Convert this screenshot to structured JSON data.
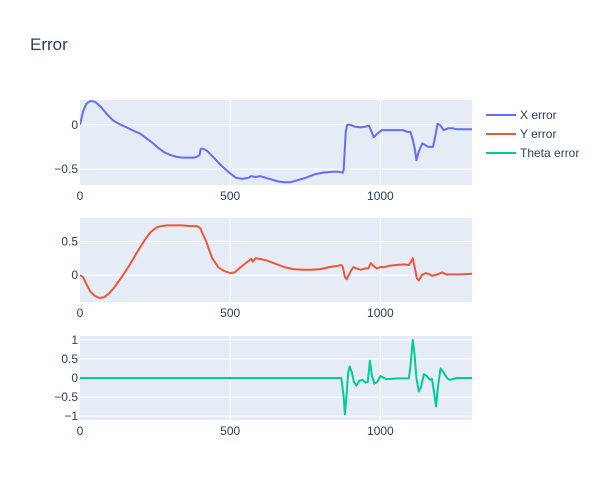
{
  "title": "Error",
  "legend_position": "top-right",
  "colors": {
    "plot_bg": "#e5ecf6",
    "grid": "#ffffff",
    "text": "#2a3f5f",
    "x_error": "#636efa",
    "y_error": "#ef553b",
    "theta_error": "#00cc96"
  },
  "chart_data": [
    {
      "type": "line",
      "title": "",
      "xlabel": "",
      "ylabel": "",
      "xlim": [
        0,
        1305
      ],
      "ylim": [
        -0.68,
        0.28
      ],
      "xticks": [
        0,
        500,
        1000
      ],
      "xtick_labels": [
        "0",
        "500",
        "1000"
      ],
      "yticks": [
        0,
        -0.5
      ],
      "ytick_labels": [
        "0",
        "−0.5"
      ],
      "grid": true,
      "series": [
        {
          "name": "X error",
          "color": "#636efa",
          "points": [
            [
              0,
              0
            ],
            [
              10,
              0.15
            ],
            [
              22,
              0.24
            ],
            [
              35,
              0.27
            ],
            [
              50,
              0.26
            ],
            [
              70,
              0.2
            ],
            [
              90,
              0.12
            ],
            [
              110,
              0.05
            ],
            [
              130,
              0.01
            ],
            [
              155,
              -0.03
            ],
            [
              180,
              -0.07
            ],
            [
              200,
              -0.1
            ],
            [
              220,
              -0.15
            ],
            [
              240,
              -0.2
            ],
            [
              260,
              -0.26
            ],
            [
              280,
              -0.31
            ],
            [
              300,
              -0.34
            ],
            [
              320,
              -0.36
            ],
            [
              340,
              -0.37
            ],
            [
              360,
              -0.37
            ],
            [
              380,
              -0.37
            ],
            [
              390,
              -0.36
            ],
            [
              398,
              -0.34
            ],
            [
              402,
              -0.27
            ],
            [
              410,
              -0.27
            ],
            [
              425,
              -0.3
            ],
            [
              445,
              -0.37
            ],
            [
              470,
              -0.46
            ],
            [
              500,
              -0.55
            ],
            [
              520,
              -0.6
            ],
            [
              540,
              -0.61
            ],
            [
              560,
              -0.6
            ],
            [
              570,
              -0.58
            ],
            [
              585,
              -0.59
            ],
            [
              600,
              -0.58
            ],
            [
              630,
              -0.61
            ],
            [
              660,
              -0.64
            ],
            [
              680,
              -0.65
            ],
            [
              700,
              -0.65
            ],
            [
              720,
              -0.63
            ],
            [
              750,
              -0.6
            ],
            [
              780,
              -0.56
            ],
            [
              810,
              -0.54
            ],
            [
              840,
              -0.53
            ],
            [
              860,
              -0.53
            ],
            [
              875,
              -0.54
            ],
            [
              878,
              -0.5
            ],
            [
              885,
              -0.07
            ],
            [
              890,
              0.0
            ],
            [
              900,
              0.0
            ],
            [
              915,
              -0.02
            ],
            [
              935,
              -0.03
            ],
            [
              950,
              -0.02
            ],
            [
              962,
              -0.01
            ],
            [
              968,
              -0.06
            ],
            [
              978,
              -0.14
            ],
            [
              990,
              -0.1
            ],
            [
              1005,
              -0.06
            ],
            [
              1025,
              -0.06
            ],
            [
              1050,
              -0.06
            ],
            [
              1075,
              -0.06
            ],
            [
              1090,
              -0.08
            ],
            [
              1100,
              -0.08
            ],
            [
              1108,
              -0.17
            ],
            [
              1115,
              -0.28
            ],
            [
              1120,
              -0.4
            ],
            [
              1128,
              -0.3
            ],
            [
              1140,
              -0.21
            ],
            [
              1150,
              -0.23
            ],
            [
              1160,
              -0.25
            ],
            [
              1175,
              -0.25
            ],
            [
              1183,
              -0.12
            ],
            [
              1190,
              0.01
            ],
            [
              1198,
              0.0
            ],
            [
              1210,
              -0.06
            ],
            [
              1225,
              -0.04
            ],
            [
              1240,
              -0.04
            ],
            [
              1255,
              -0.05
            ],
            [
              1270,
              -0.05
            ],
            [
              1305,
              -0.05
            ]
          ]
        }
      ]
    },
    {
      "type": "line",
      "title": "",
      "xlabel": "",
      "ylabel": "",
      "xlim": [
        0,
        1305
      ],
      "ylim": [
        -0.4,
        0.85
      ],
      "xticks": [
        0,
        500,
        1000
      ],
      "xtick_labels": [
        "0",
        "500",
        "1000"
      ],
      "yticks": [
        0.5,
        0
      ],
      "ytick_labels": [
        "0.5",
        "0"
      ],
      "grid": true,
      "series": [
        {
          "name": "Y error",
          "color": "#ef553b",
          "points": [
            [
              0,
              0
            ],
            [
              10,
              -0.03
            ],
            [
              20,
              -0.12
            ],
            [
              35,
              -0.25
            ],
            [
              50,
              -0.31
            ],
            [
              65,
              -0.34
            ],
            [
              80,
              -0.33
            ],
            [
              95,
              -0.28
            ],
            [
              115,
              -0.18
            ],
            [
              140,
              -0.02
            ],
            [
              165,
              0.15
            ],
            [
              190,
              0.34
            ],
            [
              215,
              0.52
            ],
            [
              235,
              0.64
            ],
            [
              255,
              0.71
            ],
            [
              270,
              0.73
            ],
            [
              290,
              0.74
            ],
            [
              310,
              0.74
            ],
            [
              340,
              0.74
            ],
            [
              370,
              0.73
            ],
            [
              390,
              0.73
            ],
            [
              400,
              0.7
            ],
            [
              420,
              0.5
            ],
            [
              440,
              0.25
            ],
            [
              460,
              0.12
            ],
            [
              480,
              0.06
            ],
            [
              500,
              0.03
            ],
            [
              515,
              0.04
            ],
            [
              535,
              0.12
            ],
            [
              555,
              0.19
            ],
            [
              570,
              0.24
            ],
            [
              575,
              0.2
            ],
            [
              585,
              0.25
            ],
            [
              600,
              0.24
            ],
            [
              620,
              0.22
            ],
            [
              650,
              0.17
            ],
            [
              680,
              0.12
            ],
            [
              710,
              0.09
            ],
            [
              740,
              0.08
            ],
            [
              770,
              0.08
            ],
            [
              800,
              0.09
            ],
            [
              830,
              0.12
            ],
            [
              860,
              0.14
            ],
            [
              870,
              0.15
            ],
            [
              875,
              0.12
            ],
            [
              882,
              -0.03
            ],
            [
              888,
              -0.06
            ],
            [
              895,
              0.0
            ],
            [
              903,
              0.07
            ],
            [
              910,
              0.12
            ],
            [
              920,
              0.1
            ],
            [
              935,
              0.08
            ],
            [
              950,
              0.1
            ],
            [
              960,
              0.1
            ],
            [
              968,
              0.18
            ],
            [
              976,
              0.14
            ],
            [
              988,
              0.1
            ],
            [
              1000,
              0.12
            ],
            [
              1015,
              0.12
            ],
            [
              1030,
              0.14
            ],
            [
              1055,
              0.15
            ],
            [
              1080,
              0.16
            ],
            [
              1095,
              0.15
            ],
            [
              1102,
              0.2
            ],
            [
              1108,
              0.25
            ],
            [
              1115,
              0.1
            ],
            [
              1122,
              -0.05
            ],
            [
              1128,
              -0.08
            ],
            [
              1138,
              0.0
            ],
            [
              1150,
              0.03
            ],
            [
              1160,
              0.02
            ],
            [
              1172,
              -0.01
            ],
            [
              1182,
              0.0
            ],
            [
              1195,
              0.02
            ],
            [
              1205,
              0.04
            ],
            [
              1220,
              0.01
            ],
            [
              1245,
              0.01
            ],
            [
              1270,
              0.01
            ],
            [
              1305,
              0.02
            ]
          ]
        }
      ]
    },
    {
      "type": "line",
      "title": "",
      "xlabel": "",
      "ylabel": "",
      "xlim": [
        0,
        1305
      ],
      "ylim": [
        -1.1,
        1.1
      ],
      "xticks": [
        0,
        500,
        1000
      ],
      "xtick_labels": [
        "0",
        "500",
        "1000"
      ],
      "yticks": [
        1,
        0.5,
        0,
        -0.5,
        -1
      ],
      "ytick_labels": [
        "1",
        "0.5",
        "0",
        "−0.5",
        "−1"
      ],
      "grid": true,
      "series": [
        {
          "name": "Theta error",
          "color": "#00cc96",
          "points": [
            [
              0,
              0
            ],
            [
              870,
              0
            ],
            [
              878,
              -0.5
            ],
            [
              882,
              -0.95
            ],
            [
              887,
              -0.5
            ],
            [
              893,
              0.15
            ],
            [
              898,
              0.3
            ],
            [
              905,
              0.15
            ],
            [
              912,
              -0.1
            ],
            [
              920,
              -0.2
            ],
            [
              930,
              -0.07
            ],
            [
              940,
              -0.05
            ],
            [
              950,
              -0.12
            ],
            [
              958,
              -0.1
            ],
            [
              965,
              0.45
            ],
            [
              972,
              0.05
            ],
            [
              980,
              -0.15
            ],
            [
              990,
              -0.1
            ],
            [
              1000,
              0.05
            ],
            [
              1012,
              0.0
            ],
            [
              1020,
              -0.03
            ],
            [
              1040,
              -0.02
            ],
            [
              1060,
              -0.01
            ],
            [
              1080,
              -0.01
            ],
            [
              1095,
              -0.01
            ],
            [
              1100,
              0.3
            ],
            [
              1108,
              1.0
            ],
            [
              1114,
              0.6
            ],
            [
              1120,
              0.0
            ],
            [
              1128,
              -0.35
            ],
            [
              1135,
              -0.25
            ],
            [
              1145,
              0.1
            ],
            [
              1155,
              0.05
            ],
            [
              1165,
              -0.05
            ],
            [
              1172,
              -0.02
            ],
            [
              1180,
              -0.45
            ],
            [
              1185,
              -0.75
            ],
            [
              1192,
              -0.2
            ],
            [
              1200,
              0.25
            ],
            [
              1210,
              0.15
            ],
            [
              1222,
              0.0
            ],
            [
              1230,
              -0.05
            ],
            [
              1240,
              -0.03
            ],
            [
              1255,
              0.0
            ],
            [
              1270,
              0.0
            ],
            [
              1290,
              0.0
            ],
            [
              1305,
              0.0
            ]
          ]
        }
      ]
    }
  ]
}
